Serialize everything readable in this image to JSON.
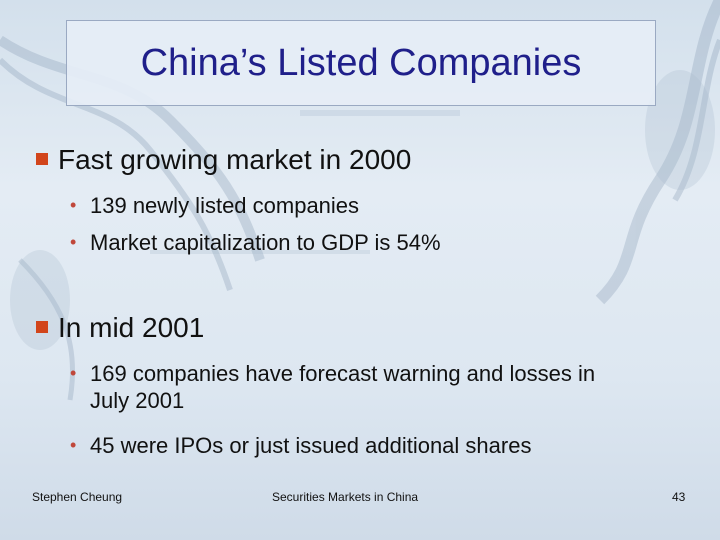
{
  "slide": {
    "title": "China’s Listed Companies",
    "sections": [
      {
        "heading": "Fast growing market in 2000",
        "bullets": [
          "139 newly listed companies",
          "Market capitalization to GDP is 54%"
        ]
      },
      {
        "heading": "In mid 2001",
        "bullets": [
          "169 companies have forecast warning and losses in July 2001",
          "45 were IPOs or just issued additional shares"
        ]
      }
    ]
  },
  "footer": {
    "author": "Stephen Cheung",
    "course": "Securities Markets in China",
    "page_number": "43"
  },
  "colors": {
    "title": "#1f1f8a",
    "heading_marker": "#d2451b",
    "bullet_dot": "#c0473a"
  }
}
